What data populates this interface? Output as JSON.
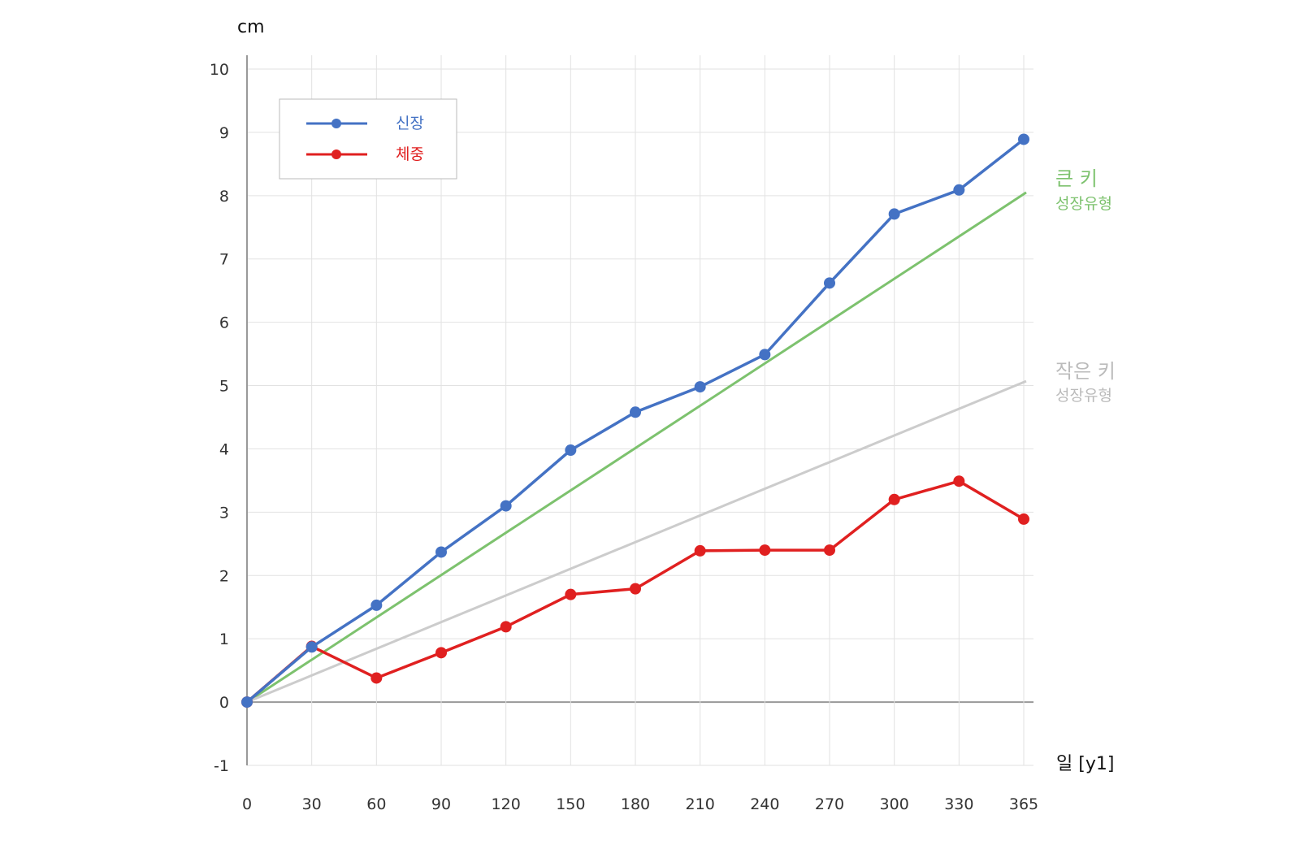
{
  "chart_data": {
    "type": "line",
    "ylabel": "cm",
    "xlabel": "일 [y1]",
    "x": [
      0,
      30,
      60,
      90,
      120,
      150,
      180,
      210,
      240,
      270,
      300,
      330,
      365
    ],
    "x_tick_labels": [
      "0",
      "30",
      "60",
      "90",
      "120",
      "150",
      "180",
      "210",
      "240",
      "270",
      "300",
      "330",
      "365"
    ],
    "y_ticks": [
      -1,
      0,
      1,
      2,
      3,
      4,
      5,
      6,
      7,
      8,
      9,
      10
    ],
    "y_tick_labels": [
      "-1",
      "0",
      "1",
      "2",
      "3",
      "4",
      "5",
      "6",
      "7",
      "8",
      "9",
      "10"
    ],
    "ylim": [
      -1,
      10
    ],
    "xlim": [
      0,
      365
    ],
    "grid": true,
    "legend_position": "top-left",
    "series": [
      {
        "name": "신장",
        "color": "#4472C4",
        "marker": "circle",
        "values": [
          0,
          0.87,
          1.53,
          2.37,
          3.1,
          3.98,
          4.58,
          4.98,
          5.49,
          6.62,
          7.71,
          8.09,
          8.89
        ]
      },
      {
        "name": "체중",
        "color": "#E02020",
        "marker": "circle",
        "values": [
          0,
          0.88,
          0.38,
          0.78,
          1.19,
          1.7,
          1.79,
          2.39,
          2.4,
          2.4,
          3.2,
          3.49,
          2.89
        ]
      }
    ],
    "reference_lines": [
      {
        "label": "큰 키",
        "sublabel": "성장유형",
        "color": "#7DC26E",
        "x": [
          0,
          365
        ],
        "y": [
          0,
          8.05
        ]
      },
      {
        "label": "작은 키",
        "sublabel": "성장유형",
        "color": "#CCCCCC",
        "x": [
          0,
          365
        ],
        "y": [
          0,
          5.07
        ]
      }
    ]
  }
}
